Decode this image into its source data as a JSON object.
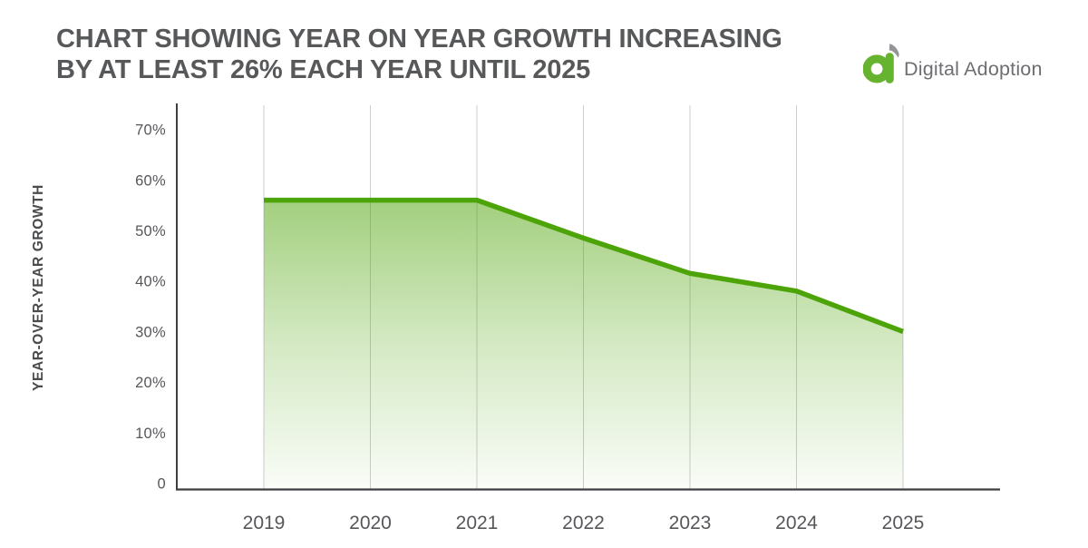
{
  "header": {
    "title_line1": "CHART SHOWING YEAR ON YEAR GROWTH INCREASING",
    "title_line2": "BY AT LEAST 26% EACH YEAR UNTIL 2025",
    "logo": {
      "text": "Digital Adoption",
      "icon": "digital-adoption-a-logo",
      "icon_green": "#65b32e",
      "icon_gray": "#939598"
    }
  },
  "chart_data": {
    "type": "area",
    "title": "CHART SHOWING YEAR ON YEAR GROWTH INCREASING BY AT LEAST 26% EACH YEAR UNTIL 2025",
    "categories": [
      "2019",
      "2020",
      "2021",
      "2022",
      "2023",
      "2024",
      "2025"
    ],
    "values": [
      56,
      56,
      56,
      48.5,
      41.5,
      38,
      30
    ],
    "series_name": "Year-over-year growth (%)",
    "xlabel": "",
    "ylabel": "YEAR-OVER-YEAR GROWTH",
    "ylim": [
      0,
      75
    ],
    "yticks": [
      {
        "value": 70,
        "label": "70%"
      },
      {
        "value": 60,
        "label": "60%"
      },
      {
        "value": 50,
        "label": "50%"
      },
      {
        "value": 40,
        "label": "40%"
      },
      {
        "value": 30,
        "label": "30%"
      },
      {
        "value": 20,
        "label": "20%"
      },
      {
        "value": 10,
        "label": "10%"
      },
      {
        "value": 0,
        "label": "0"
      }
    ],
    "grid": "vertical-only",
    "legend": "none",
    "colors": {
      "line": "#4da408",
      "fill_top": "rgba(77,164,8,0.52)",
      "fill_mid": "rgba(77,164,8,0.24)",
      "fill_bottom": "rgba(77,164,8,0.03)",
      "axis": "#3f3f41",
      "gridline": "#cdcdcd",
      "tick_text": "#56575a",
      "axis_label_text": "#4a4b4d"
    }
  }
}
